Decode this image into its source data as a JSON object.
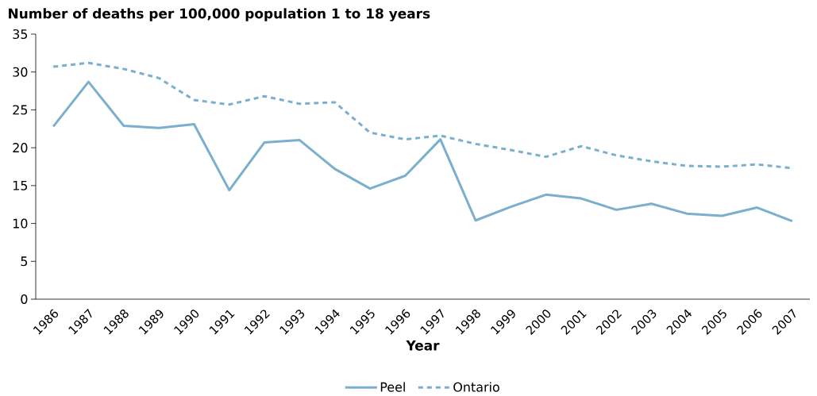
{
  "chart_data": {
    "type": "line",
    "title": "Number of deaths per 100,000 population 1 to 18 years",
    "xlabel": "Year",
    "categories": [
      "1986",
      "1987",
      "1988",
      "1989",
      "1990",
      "1991",
      "1992",
      "1993",
      "1994",
      "1995",
      "1996",
      "1997",
      "1998",
      "1999",
      "2000",
      "2001",
      "2002",
      "2003",
      "2004",
      "2005",
      "2006",
      "2007"
    ],
    "series": [
      {
        "name": "Peel",
        "color": "#7aafcd",
        "line_style": "solid",
        "values": [
          22.8,
          28.7,
          22.9,
          22.6,
          23.1,
          14.4,
          20.7,
          21.0,
          17.2,
          14.6,
          16.3,
          21.1,
          10.4,
          12.2,
          13.8,
          13.3,
          11.8,
          12.6,
          11.3,
          11.0,
          12.1,
          10.3
        ]
      },
      {
        "name": "Ontario",
        "color": "#7aafcd",
        "line_style": "dashed",
        "values": [
          30.7,
          31.2,
          30.4,
          29.2,
          26.3,
          25.7,
          26.8,
          25.8,
          26.0,
          22.0,
          21.1,
          21.6,
          20.5,
          19.7,
          18.8,
          20.2,
          19.0,
          18.2,
          17.6,
          17.5,
          17.8,
          17.3
        ]
      }
    ],
    "ylim": [
      0,
      35
    ],
    "yticks": [
      0,
      5,
      10,
      15,
      20,
      25,
      30,
      35
    ],
    "grid": false,
    "legend": "bottom",
    "marker": "none"
  }
}
